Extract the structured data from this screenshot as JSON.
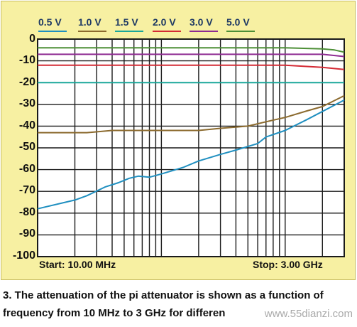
{
  "chart_data": {
    "type": "line",
    "title": "",
    "xlabel": "",
    "ylabel": "",
    "x_start_label": "Start: 10.00 MHz",
    "x_stop_label": "Stop: 3.00 GHz",
    "x_range_mhz": [
      10,
      3000
    ],
    "x_scale": "log",
    "ylim": [
      -100,
      0
    ],
    "y_ticks": [
      "0",
      "-10",
      "-20",
      "-30",
      "-40",
      "-50",
      "-60",
      "-70",
      "-80",
      "-90",
      "-100"
    ],
    "grid": true,
    "legend_position": "top",
    "series": [
      {
        "name": "0.5 V",
        "color": "#1f8fc0",
        "x": [
          10,
          20,
          25,
          35,
          45,
          55,
          65,
          80,
          100,
          150,
          200,
          300,
          400,
          600,
          700,
          1000,
          1500,
          3000
        ],
        "y": [
          -78,
          -74,
          -72,
          -68,
          -66,
          -64,
          -63,
          -63.5,
          -62,
          -59,
          -56,
          -53,
          -51,
          -48,
          -45,
          -42,
          -37,
          -28
        ]
      },
      {
        "name": "1.0 V",
        "color": "#8b6a2e",
        "x": [
          10,
          25,
          40,
          100,
          200,
          300,
          500,
          700,
          1000,
          1500,
          2000,
          3000
        ],
        "y": [
          -43,
          -43,
          -42,
          -42,
          -42,
          -41,
          -40,
          -38,
          -36,
          -33,
          -31,
          -26
        ]
      },
      {
        "name": "1.5 V",
        "color": "#1aa79a",
        "x": [
          10,
          100,
          1000,
          3000
        ],
        "y": [
          -20,
          -20,
          -20,
          -20
        ]
      },
      {
        "name": "2.0 V",
        "color": "#d42b35",
        "x": [
          10,
          100,
          1000,
          2000,
          3000
        ],
        "y": [
          -12,
          -12,
          -12,
          -13,
          -14
        ]
      },
      {
        "name": "3.0 V",
        "color": "#8e2b92",
        "x": [
          10,
          100,
          1000,
          2000,
          3000
        ],
        "y": [
          -7,
          -7,
          -7,
          -7,
          -8
        ]
      },
      {
        "name": "5.0 V",
        "color": "#4d8f37",
        "x": [
          10,
          100,
          1000,
          2000,
          2500,
          3000
        ],
        "y": [
          -4,
          -4,
          -4,
          -4.5,
          -5,
          -6
        ]
      }
    ]
  },
  "caption": {
    "line1": "3. The attenuation of the pi attenuator is shown as a function of",
    "line2": "frequency from 10 MHz to 3 GHz for differen"
  },
  "watermark": "www.55dianzi.com"
}
